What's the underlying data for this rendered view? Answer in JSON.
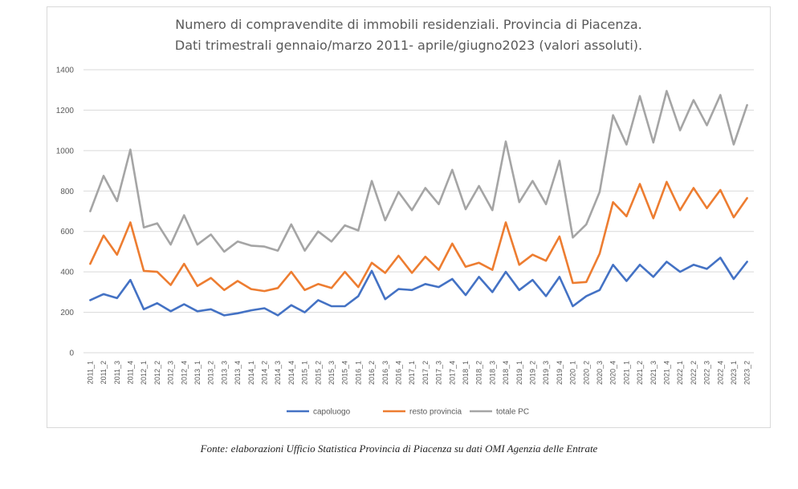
{
  "chart_data": {
    "type": "line",
    "title": "Numero di compravendite di immobili residenziali. Provincia di Piacenza.",
    "subtitle": "Dati trimestrali gennaio/marzo 2011- aprile/giugno2023 (valori assoluti).",
    "xlabel": "",
    "ylabel": "",
    "ylim": [
      0,
      1400
    ],
    "yticks": [
      0,
      200,
      400,
      600,
      800,
      1000,
      1200,
      1400
    ],
    "grid": true,
    "legend_position": "bottom",
    "categories": [
      "2011_1",
      "2011_2",
      "2011_3",
      "2011_4",
      "2012_1",
      "2012_2",
      "2012_3",
      "2012_4",
      "2013_1",
      "2013_2",
      "2013_3",
      "2013_4",
      "2014_1",
      "2014_2",
      "2014_3",
      "2014_4",
      "2015_1",
      "2015_2",
      "2015_3",
      "2015_4",
      "2016_1",
      "2016_2",
      "2016_3",
      "2016_4",
      "2017_1",
      "2017_2",
      "2017_3",
      "2017_4",
      "2018_1",
      "2018_2",
      "2018_3",
      "2018_4",
      "2019_1",
      "2019_2",
      "2019_3",
      "2019_4",
      "2020_1",
      "2020_2",
      "2020_3",
      "2020_4",
      "2021_1",
      "2021_2",
      "2021_3",
      "2021_4",
      "2022_1",
      "2022_2",
      "2022_3",
      "2022_4",
      "2023_1",
      "2023_2"
    ],
    "series": [
      {
        "name": "capoluogo",
        "color": "#4472c4",
        "values": [
          260,
          290,
          270,
          360,
          215,
          245,
          205,
          240,
          205,
          215,
          185,
          195,
          210,
          220,
          185,
          235,
          200,
          260,
          230,
          230,
          280,
          405,
          265,
          315,
          310,
          340,
          325,
          365,
          285,
          375,
          300,
          400,
          310,
          360,
          280,
          375,
          230,
          280,
          310,
          435,
          355,
          435,
          375,
          450,
          400,
          435,
          415,
          470,
          365,
          450
        ]
      },
      {
        "name": "resto provincia",
        "color": "#ed7d31",
        "values": [
          440,
          580,
          485,
          645,
          405,
          400,
          335,
          440,
          330,
          370,
          310,
          355,
          315,
          305,
          320,
          400,
          310,
          340,
          320,
          400,
          325,
          445,
          395,
          480,
          395,
          475,
          410,
          540,
          425,
          445,
          410,
          645,
          435,
          485,
          455,
          575,
          345,
          350,
          490,
          745,
          675,
          835,
          665,
          845,
          705,
          815,
          715,
          805,
          670,
          765
        ]
      },
      {
        "name": "totale PC",
        "color": "#a5a5a5",
        "values": [
          700,
          875,
          750,
          1005,
          620,
          640,
          535,
          680,
          535,
          585,
          500,
          550,
          530,
          525,
          505,
          635,
          505,
          600,
          550,
          630,
          605,
          850,
          655,
          795,
          705,
          815,
          735,
          905,
          710,
          825,
          705,
          1045,
          745,
          850,
          735,
          950,
          570,
          635,
          795,
          1175,
          1030,
          1270,
          1040,
          1295,
          1100,
          1250,
          1125,
          1275,
          1030,
          1225
        ]
      }
    ]
  },
  "footer": {
    "source": "Fonte: elaborazioni Ufficio Statistica Provincia di Piacenza su dati OMI Agenzia delle Entrate"
  }
}
